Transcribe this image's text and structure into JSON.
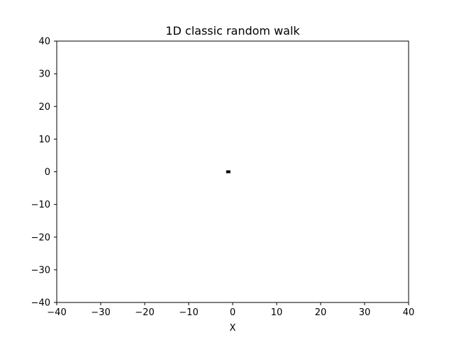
{
  "chart_data": {
    "type": "scatter",
    "title": "1D classic random walk",
    "xlabel": "X",
    "ylabel": "",
    "xlim": [
      -40,
      40
    ],
    "ylim": [
      -40,
      40
    ],
    "x_ticks": [
      -40,
      -30,
      -20,
      -10,
      0,
      10,
      20,
      30,
      40
    ],
    "y_ticks": [
      -40,
      -30,
      -20,
      -10,
      0,
      10,
      20,
      30,
      40
    ],
    "x_tick_labels": [
      "−40",
      "−30",
      "−20",
      "−10",
      "0",
      "10",
      "20",
      "30",
      "40"
    ],
    "y_tick_labels": [
      "−40",
      "−30",
      "−20",
      "−10",
      "0",
      "10",
      "20",
      "30",
      "40"
    ],
    "grid": false,
    "legend": "none",
    "series": [
      {
        "x": [
          -1
        ],
        "y": [
          0
        ],
        "marker": "square",
        "color": "#000000"
      }
    ]
  }
}
